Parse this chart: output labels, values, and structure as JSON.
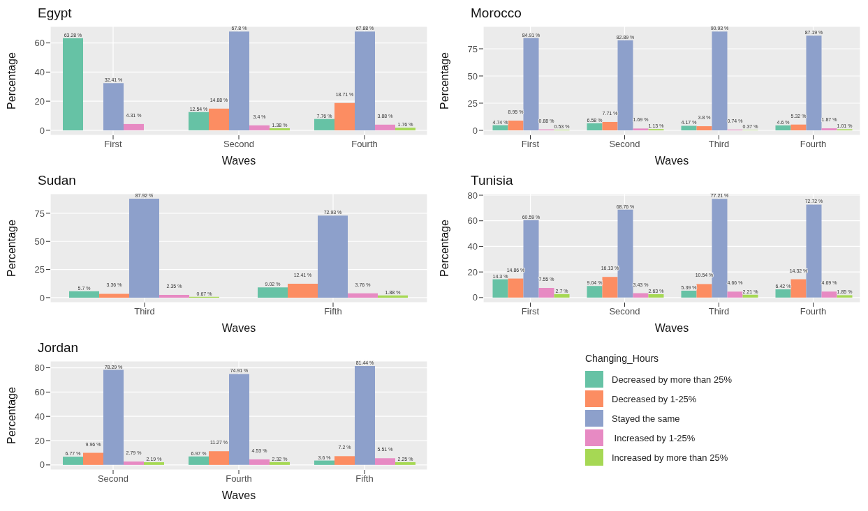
{
  "chart_data": [
    {
      "type": "bar",
      "title": "Egypt",
      "xlabel": "Waves",
      "ylabel": "Percentage",
      "categories": [
        "First",
        "Second",
        "Fourth"
      ],
      "ylim": [
        -3.4,
        71.3
      ],
      "yticks": [
        0,
        20,
        40,
        60
      ],
      "grid": true,
      "series": [
        {
          "color": "#66c2a5",
          "values": [
            63.28,
            12.54,
            7.76
          ],
          "value_labels": [
            "63.28 %",
            "12.54 %",
            "7.76 %"
          ]
        },
        {
          "color": "#fc8d62",
          "values": [
            null,
            14.88,
            18.71
          ],
          "value_labels": [
            null,
            "14.88 %",
            "18.71 %"
          ]
        },
        {
          "color": "#8da0cb",
          "values": [
            32.41,
            67.8,
            67.88
          ],
          "value_labels": [
            "32.41 %",
            "67.8 %",
            "67.88 %"
          ]
        },
        {
          "color": "#e78ac3",
          "values": [
            4.31,
            3.4,
            3.88
          ],
          "value_labels": [
            "4.31 %",
            "3.4 %",
            "3.88 %"
          ]
        },
        {
          "color": "#a6d854",
          "values": [
            null,
            1.38,
            1.76
          ],
          "value_labels": [
            null,
            "1.38 %",
            "1.76 %"
          ]
        }
      ]
    },
    {
      "type": "bar",
      "title": "Morocco",
      "xlabel": "Waves",
      "ylabel": "Percentage",
      "categories": [
        "First",
        "Second",
        "Third",
        "Fourth"
      ],
      "ylim": [
        -4.5,
        95.5
      ],
      "yticks": [
        0,
        25,
        50,
        75
      ],
      "grid": true,
      "series": [
        {
          "color": "#66c2a5",
          "values": [
            4.74,
            6.58,
            4.17,
            4.6
          ],
          "value_labels": [
            "4.74 %",
            "6.58 %",
            "4.17 %",
            "4.6 %"
          ]
        },
        {
          "color": "#fc8d62",
          "values": [
            8.95,
            7.71,
            3.8,
            5.32
          ],
          "value_labels": [
            "8.95 %",
            "7.71 %",
            "3.8 %",
            "5.32 %"
          ]
        },
        {
          "color": "#8da0cb",
          "values": [
            84.91,
            82.89,
            90.93,
            87.19
          ],
          "value_labels": [
            "84.91 %",
            "82.89 %",
            "90.93 %",
            "87.19 %"
          ]
        },
        {
          "color": "#e78ac3",
          "values": [
            0.88,
            1.69,
            0.74,
            1.87
          ],
          "value_labels": [
            "0.88 %",
            "1.69 %",
            "0.74 %",
            "1.87 %"
          ]
        },
        {
          "color": "#a6d854",
          "values": [
            0.53,
            1.13,
            0.37,
            1.01
          ],
          "value_labels": [
            "0.53 %",
            "1.13 %",
            "0.37 %",
            "1.01 %"
          ]
        }
      ]
    },
    {
      "type": "bar",
      "title": "Sudan",
      "xlabel": "Waves",
      "ylabel": "Percentage",
      "categories": [
        "Third",
        "Fifth"
      ],
      "ylim": [
        -4.4,
        92.3
      ],
      "yticks": [
        0,
        25,
        50,
        75
      ],
      "grid": true,
      "series": [
        {
          "color": "#66c2a5",
          "values": [
            5.7,
            9.02
          ],
          "value_labels": [
            "5.7 %",
            "9.02 %"
          ]
        },
        {
          "color": "#fc8d62",
          "values": [
            3.36,
            12.41
          ],
          "value_labels": [
            "3.36 %",
            "12.41 %"
          ]
        },
        {
          "color": "#8da0cb",
          "values": [
            87.92,
            72.93
          ],
          "value_labels": [
            "87.92 %",
            "72.93 %"
          ]
        },
        {
          "color": "#e78ac3",
          "values": [
            2.35,
            3.76
          ],
          "value_labels": [
            "2.35 %",
            "3.76 %"
          ]
        },
        {
          "color": "#a6d854",
          "values": [
            0.67,
            1.88
          ],
          "value_labels": [
            "0.67 %",
            "1.88 %"
          ]
        }
      ]
    },
    {
      "type": "bar",
      "title": "Tunisia",
      "xlabel": "Waves",
      "ylabel": "Percentage",
      "categories": [
        "First",
        "Second",
        "Third",
        "Fourth"
      ],
      "ylim": [
        -3.9,
        81.1
      ],
      "yticks": [
        0,
        20,
        40,
        60,
        80
      ],
      "grid": true,
      "series": [
        {
          "color": "#66c2a5",
          "values": [
            14.3,
            9.04,
            5.39,
            6.42
          ],
          "value_labels": [
            "14.3 %",
            "9.04 %",
            "5.39 %",
            "6.42 %"
          ]
        },
        {
          "color": "#fc8d62",
          "values": [
            14.86,
            16.13,
            10.54,
            14.32
          ],
          "value_labels": [
            "14.86 %",
            "16.13 %",
            "10.54 %",
            "14.32 %"
          ]
        },
        {
          "color": "#8da0cb",
          "values": [
            60.59,
            68.76,
            77.21,
            72.72
          ],
          "value_labels": [
            "60.59 %",
            "68.76 %",
            "77.21 %",
            "72.72 %"
          ]
        },
        {
          "color": "#e78ac3",
          "values": [
            7.55,
            3.43,
            4.66,
            4.69
          ],
          "value_labels": [
            "7.55 %",
            "3.43 %",
            "4.66 %",
            "4.69 %"
          ]
        },
        {
          "color": "#a6d854",
          "values": [
            2.7,
            2.63,
            2.21,
            1.85
          ],
          "value_labels": [
            "2.7 %",
            "2.63 %",
            "2.21 %",
            "1.85 %"
          ]
        }
      ]
    },
    {
      "type": "bar",
      "title": "Jordan",
      "xlabel": "Waves",
      "ylabel": "Percentage",
      "categories": [
        "Second",
        "Fourth",
        "Fifth"
      ],
      "ylim": [
        -4.1,
        85.5
      ],
      "yticks": [
        0,
        20,
        40,
        60,
        80
      ],
      "grid": true,
      "legend": "right",
      "legend_title": "Changing_Hours",
      "series": [
        {
          "name": "Decreased by more than 25%",
          "color": "#66c2a5",
          "values": [
            6.77,
            6.97,
            3.6
          ],
          "value_labels": [
            "6.77 %",
            "6.97 %",
            "3.6 %"
          ]
        },
        {
          "name": "Decreased by 1-25%",
          "color": "#fc8d62",
          "values": [
            9.96,
            11.27,
            7.2
          ],
          "value_labels": [
            "9.96 %",
            "11.27 %",
            "7.2 %"
          ]
        },
        {
          "name": "Stayed the same",
          "color": "#8da0cb",
          "values": [
            78.29,
            74.91,
            81.44
          ],
          "value_labels": [
            "78.29 %",
            "74.91 %",
            "81.44 %"
          ]
        },
        {
          "name": " Increased by 1-25%",
          "color": "#e78ac3",
          "values": [
            2.79,
            4.53,
            5.51
          ],
          "value_labels": [
            "2.79 %",
            "4.53 %",
            "5.51 %"
          ]
        },
        {
          "name": "Increased by more than 25%",
          "color": "#a6d854",
          "values": [
            2.19,
            2.32,
            2.25
          ],
          "value_labels": [
            "2.19 %",
            "2.32 %",
            "2.25 %"
          ]
        }
      ]
    }
  ]
}
